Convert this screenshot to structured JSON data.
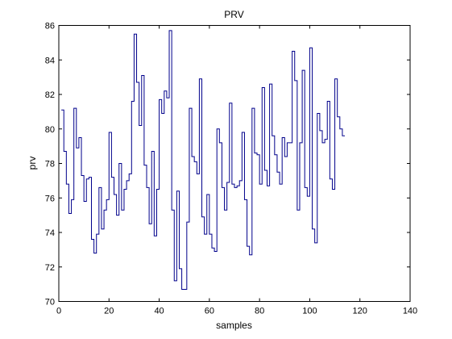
{
  "chart_data": {
    "type": "line",
    "style": "stairs",
    "title": "PRV",
    "xlabel": "samples",
    "ylabel": "prv",
    "xlim": [
      0,
      140
    ],
    "ylim": [
      70,
      86
    ],
    "xticks": [
      0,
      20,
      40,
      60,
      80,
      100,
      120,
      140
    ],
    "yticks": [
      70,
      72,
      74,
      76,
      78,
      80,
      82,
      84,
      86
    ],
    "grid": false,
    "line_color": "#00008b",
    "series": [
      {
        "values": [
          81.1,
          78.7,
          76.8,
          75.1,
          75.9,
          81.2,
          78.9,
          79.5,
          77.3,
          75.8,
          77.1,
          77.2,
          73.6,
          72.8,
          73.9,
          76.6,
          74.2,
          75.3,
          75.9,
          79.8,
          77.2,
          76.2,
          75.0,
          78.0,
          75.3,
          76.5,
          77.0,
          77.4,
          81.6,
          85.5,
          82.7,
          80.2,
          83.1,
          77.9,
          76.6,
          74.5,
          78.7,
          73.8,
          76.5,
          81.7,
          80.9,
          82.2,
          81.8,
          85.7,
          75.3,
          71.2,
          76.4,
          71.9,
          70.7,
          70.7,
          74.6,
          81.2,
          78.4,
          78.1,
          77.4,
          82.9,
          74.9,
          73.9,
          76.2,
          73.9,
          73.1,
          72.9,
          80.0,
          79.2,
          76.6,
          75.3,
          76.9,
          81.5,
          76.8,
          76.6,
          76.7,
          77.0,
          79.8,
          75.9,
          73.2,
          72.7,
          81.2,
          78.6,
          78.5,
          76.8,
          82.4,
          77.6,
          76.7,
          82.6,
          79.6,
          78.5,
          77.5,
          76.8,
          79.5,
          78.4,
          79.2,
          79.2,
          84.5,
          82.8,
          75.3,
          79.2,
          83.4,
          76.6,
          76.1,
          84.7,
          74.2,
          73.4,
          80.9,
          79.9,
          79.2,
          79.4,
          81.6,
          77.1,
          76.5,
          82.9,
          80.7,
          80.0,
          79.6
        ]
      }
    ]
  }
}
